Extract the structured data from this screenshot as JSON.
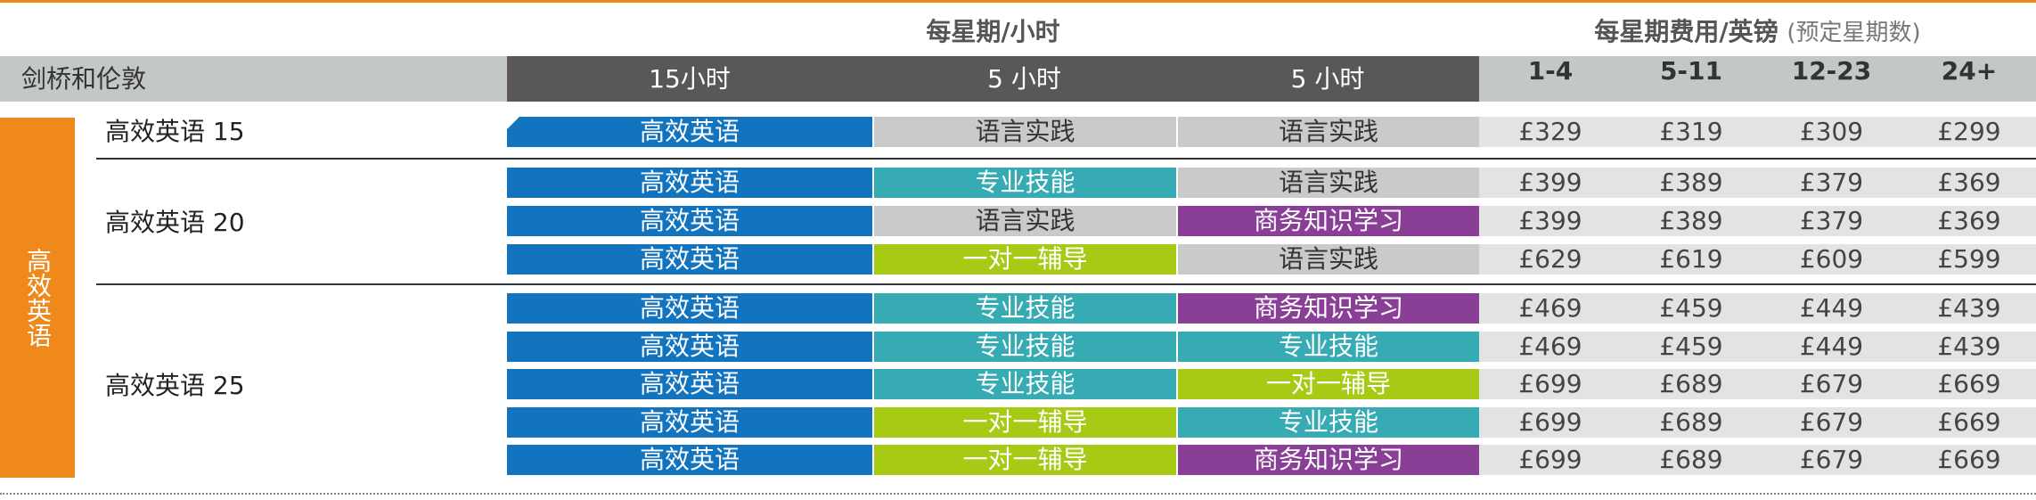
{
  "group_headers": {
    "hours": "每星期/小时",
    "fees_main": "每星期费用/英镑",
    "fees_sub": "(预定星期数)"
  },
  "header": {
    "label": "剑桥和伦敦",
    "hour_cols": [
      "15小时",
      "5 小时",
      "5 小时"
    ],
    "price_cols": [
      "1-4",
      "5-11",
      "12-23",
      "24+"
    ]
  },
  "sidebar_label": "高效英语",
  "courses": [
    {
      "name": "高效英语 15",
      "rows": [
        {
          "cells": [
            {
              "text": "高效英语",
              "kind": "eff"
            },
            {
              "text": "语言实践",
              "kind": "prac"
            },
            {
              "text": "语言实践",
              "kind": "prac"
            }
          ],
          "prices": [
            "£329",
            "£319",
            "£309",
            "£299"
          ]
        }
      ]
    },
    {
      "name": "高效英语 20",
      "rows": [
        {
          "cells": [
            {
              "text": "高效英语",
              "kind": "eff"
            },
            {
              "text": "专业技能",
              "kind": "skill"
            },
            {
              "text": "语言实践",
              "kind": "prac"
            }
          ],
          "prices": [
            "£399",
            "£389",
            "£379",
            "£369"
          ]
        },
        {
          "cells": [
            {
              "text": "高效英语",
              "kind": "eff"
            },
            {
              "text": "语言实践",
              "kind": "prac"
            },
            {
              "text": "商务知识学习",
              "kind": "bus"
            }
          ],
          "prices": [
            "£399",
            "£389",
            "£379",
            "£369"
          ]
        },
        {
          "cells": [
            {
              "text": "高效英语",
              "kind": "eff"
            },
            {
              "text": "一对一辅导",
              "kind": "tut"
            },
            {
              "text": "语言实践",
              "kind": "prac"
            }
          ],
          "prices": [
            "£629",
            "£619",
            "£609",
            "£599"
          ]
        }
      ]
    },
    {
      "name": "高效英语 25",
      "rows": [
        {
          "cells": [
            {
              "text": "高效英语",
              "kind": "eff"
            },
            {
              "text": "专业技能",
              "kind": "skill"
            },
            {
              "text": "商务知识学习",
              "kind": "bus"
            }
          ],
          "prices": [
            "£469",
            "£459",
            "£449",
            "£439"
          ]
        },
        {
          "cells": [
            {
              "text": "高效英语",
              "kind": "eff"
            },
            {
              "text": "专业技能",
              "kind": "skill"
            },
            {
              "text": "专业技能",
              "kind": "skill"
            }
          ],
          "prices": [
            "£469",
            "£459",
            "£449",
            "£439"
          ]
        },
        {
          "cells": [
            {
              "text": "高效英语",
              "kind": "eff"
            },
            {
              "text": "专业技能",
              "kind": "skill"
            },
            {
              "text": "一对一辅导",
              "kind": "tut"
            }
          ],
          "prices": [
            "£699",
            "£689",
            "£679",
            "£669"
          ]
        },
        {
          "cells": [
            {
              "text": "高效英语",
              "kind": "eff"
            },
            {
              "text": "一对一辅导",
              "kind": "tut"
            },
            {
              "text": "专业技能",
              "kind": "skill"
            }
          ],
          "prices": [
            "£699",
            "£689",
            "£679",
            "£669"
          ]
        },
        {
          "cells": [
            {
              "text": "高效英语",
              "kind": "eff"
            },
            {
              "text": "一对一辅导",
              "kind": "tut"
            },
            {
              "text": "商务知识学习",
              "kind": "bus"
            }
          ],
          "prices": [
            "£699",
            "£689",
            "£679",
            "£669"
          ]
        }
      ]
    }
  ],
  "colors": {
    "accent_orange": "#f0891c",
    "efficient_blue": "#1273bf",
    "practice_grey": "#c8cbca",
    "skills_teal": "#36abb3",
    "business_purple": "#8a3f97",
    "tutorial_green": "#a7ca14",
    "header_dark": "#595857"
  }
}
